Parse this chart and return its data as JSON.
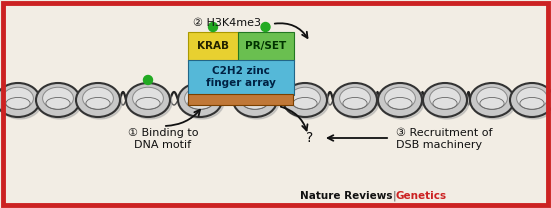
{
  "bg_color": "#f2ede4",
  "border_color": "#cc2222",
  "border_width": 3.5,
  "krab_color": "#e8d030",
  "prset_color": "#6abf50",
  "c2h2_color": "#55b8d8",
  "dna_bar_color": "#c07838",
  "green_dot_color": "#22aa22",
  "nuc_outer_color": "#c8c8c8",
  "nuc_inner_color": "#e0e0e0",
  "nuc_edge_color": "#333333",
  "dna_line_color": "#222222",
  "label_h3k4me3": "② H3K4me3",
  "label_binding": "① Binding to\nDNA motif",
  "label_recruitment": "③ Recruitment of\nDSB machinery",
  "label_krab": "KRAB",
  "label_prset": "PR/SET",
  "label_c2h2": "C2H2 zinc\nfinger array",
  "question_mark": "?",
  "footer_main": "Nature Reviews",
  "footer_accent": "Genetics",
  "footer_sep": "|"
}
